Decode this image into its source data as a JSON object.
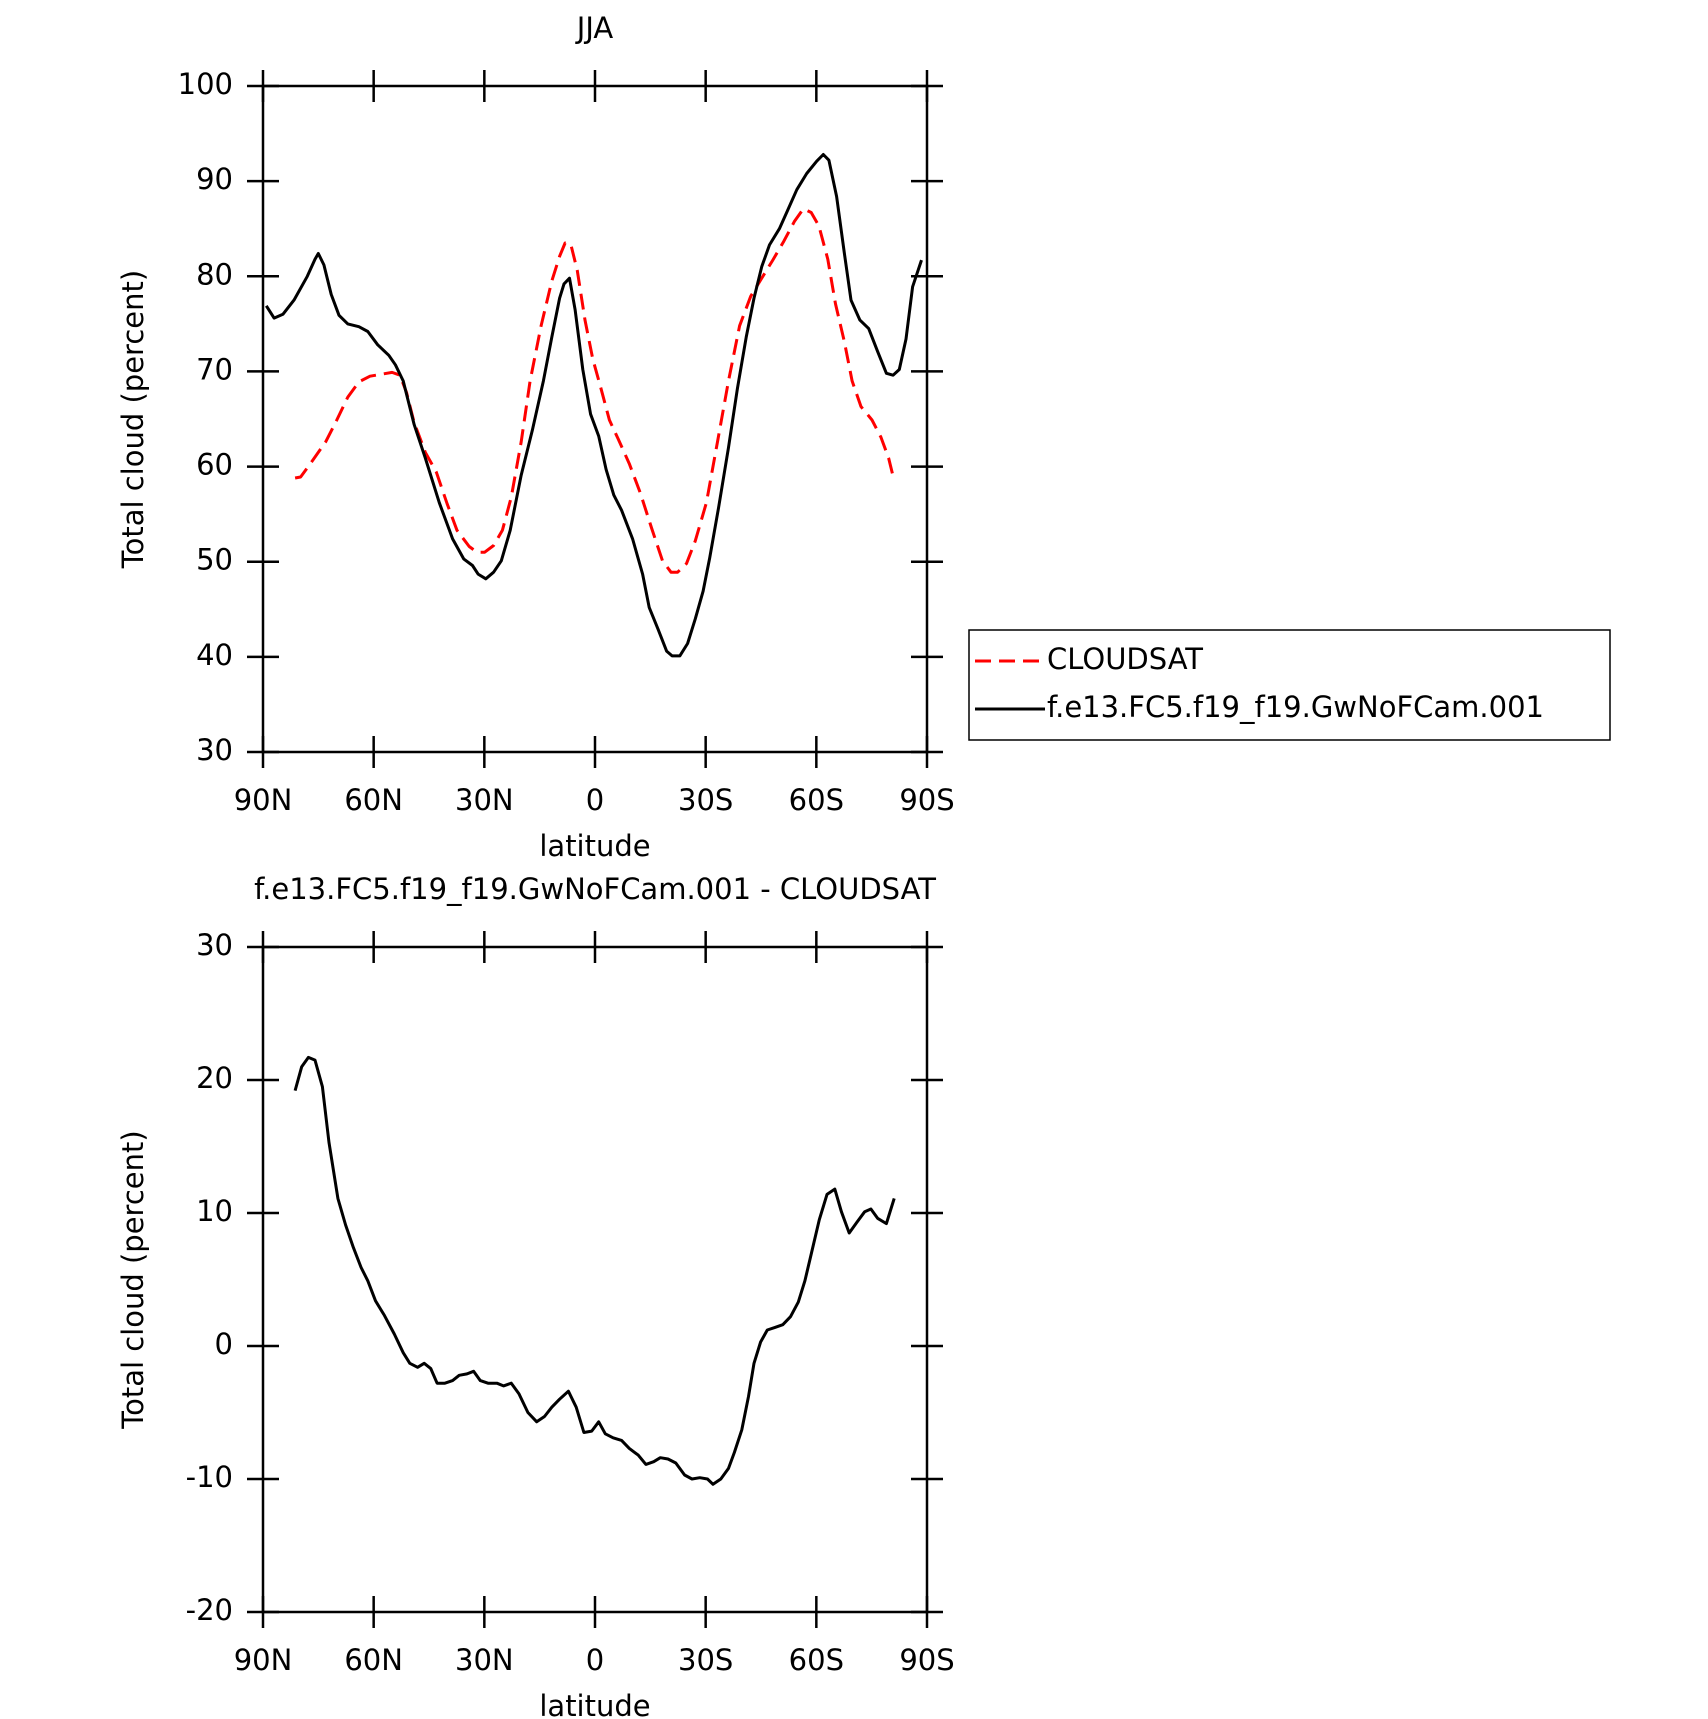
{
  "chart_data": [
    {
      "type": "line",
      "title": "JJA",
      "xlabel": "latitude",
      "ylabel": "Total cloud (percent)",
      "xlim": [
        90,
        -90
      ],
      "xticks": [
        {
          "value": 90,
          "label": "90N"
        },
        {
          "value": 60,
          "label": "60N"
        },
        {
          "value": 30,
          "label": "30N"
        },
        0,
        {
          "value": -30,
          "label": "30S"
        },
        {
          "value": -60,
          "label": "60S"
        },
        {
          "value": -90,
          "label": "90S"
        }
      ],
      "ylim": [
        30,
        100
      ],
      "yticks": [
        30,
        40,
        50,
        60,
        70,
        80,
        90,
        100
      ],
      "legend": "right",
      "series": [
        {
          "name": "CLOUDSAT",
          "color": "#ff0000",
          "style": "dashed",
          "x": [
            81.3,
            79.8,
            76.8,
            73,
            70,
            67,
            64,
            61,
            58,
            55,
            52.9,
            51.1,
            49,
            46,
            43,
            40.1,
            37.4,
            34.1,
            32,
            29.9,
            27.5,
            25.1,
            22.7,
            20,
            17.6,
            14.6,
            11.7,
            9.6,
            8.1,
            6.6,
            4.8,
            2.7,
            0.6,
            -1.5,
            -3.9,
            -6.3,
            -9.3,
            -12.3,
            -15.3,
            -18.3,
            -20.6,
            -22.4,
            -24.8,
            -27.2,
            -30.2,
            -33.2,
            -36.2,
            -39.2,
            -42.2,
            -45.2,
            -48.2,
            -51.2,
            -54.1,
            -56.5,
            -58.6,
            -60.7,
            -63.1,
            -65.2,
            -67.6,
            -69.7,
            -72.1,
            -75.1,
            -77.5,
            -79.6,
            -81.1
          ],
          "values": [
            58.8,
            58.9,
            60.5,
            62.6,
            64.9,
            67.3,
            68.9,
            69.5,
            69.7,
            69.9,
            69.6,
            67.8,
            64.6,
            61.5,
            59.4,
            56.1,
            53.3,
            51.6,
            51.0,
            51.0,
            51.7,
            53.3,
            56.8,
            62.6,
            69.0,
            74.8,
            79.5,
            82.1,
            83.5,
            83.4,
            80.6,
            75.4,
            71.3,
            68.4,
            64.9,
            62.9,
            60.3,
            57.2,
            53.6,
            50.1,
            48.9,
            48.9,
            49.8,
            52.2,
            56.2,
            62.6,
            69.0,
            74.8,
            77.9,
            79.8,
            81.7,
            83.7,
            85.8,
            87.1,
            86.7,
            85.3,
            81.8,
            77.1,
            73.1,
            69.0,
            66.3,
            64.9,
            63.1,
            60.9,
            58.5
          ]
        },
        {
          "name": "f.e13.FC5.f19_f19.GwNoFCam.001",
          "color": "#000000",
          "style": "solid",
          "x": [
            89.1,
            87,
            84.6,
            81.6,
            78,
            75.9,
            75,
            73.5,
            71.5,
            69.4,
            67,
            64,
            61.6,
            58.9,
            55.9,
            54.1,
            52,
            49,
            46,
            42.2,
            38.6,
            35.6,
            33.2,
            31.7,
            29.6,
            27.5,
            25.4,
            23,
            20,
            17,
            14,
            11.7,
            9.6,
            8.4,
            6.9,
            5.4,
            3.3,
            1.2,
            -1,
            -3,
            -5.1,
            -7.2,
            -10.2,
            -12.9,
            -14.7,
            -17.1,
            -19.4,
            -20.9,
            -23,
            -25.1,
            -27.2,
            -29.3,
            -31.1,
            -33.5,
            -36.2,
            -38.6,
            -41,
            -43.1,
            -45.2,
            -47.3,
            -50,
            -52.3,
            -54.7,
            -57.4,
            -60.1,
            -61.9,
            -63.4,
            -65.5,
            -67.6,
            -69.4,
            -71.8,
            -74.2,
            -76.6,
            -79,
            -80.8,
            -82.5,
            -84.3,
            -86.1,
            -88.5
          ],
          "values": [
            76.9,
            75.6,
            76.0,
            77.5,
            80.0,
            81.8,
            82.4,
            81.2,
            78.1,
            75.9,
            75.0,
            74.7,
            74.2,
            72.8,
            71.7,
            70.7,
            69.0,
            64.4,
            60.9,
            56.2,
            52.4,
            50.3,
            49.6,
            48.7,
            48.2,
            48.9,
            50.1,
            53.3,
            59.1,
            63.8,
            69.0,
            73.6,
            77.7,
            79.2,
            79.8,
            76.5,
            70.2,
            65.5,
            63.2,
            59.7,
            57.0,
            55.4,
            52.4,
            48.7,
            45.2,
            42.9,
            40.6,
            40.1,
            40.1,
            41.4,
            44.0,
            46.9,
            50.4,
            55.7,
            62.0,
            68.2,
            73.6,
            77.7,
            81.0,
            83.3,
            85.0,
            87.0,
            89.1,
            90.8,
            92.1,
            92.8,
            92.2,
            88.4,
            82.4,
            77.5,
            75.4,
            74.5,
            72.1,
            69.8,
            69.6,
            70.2,
            73.4,
            78.9,
            81.7
          ]
        }
      ]
    },
    {
      "type": "line",
      "title": "f.e13.FC5.f19_f19.GwNoFCam.001 - CLOUDSAT",
      "xlabel": "latitude",
      "ylabel": "Total cloud (percent)",
      "xlim": [
        90,
        -90
      ],
      "xticks": [
        {
          "value": 90,
          "label": "90N"
        },
        {
          "value": 60,
          "label": "60N"
        },
        {
          "value": 30,
          "label": "30N"
        },
        0,
        {
          "value": -30,
          "label": "30S"
        },
        {
          "value": -60,
          "label": "60S"
        },
        {
          "value": -90,
          "label": "90S"
        }
      ],
      "ylim": [
        -20,
        30
      ],
      "yticks": [
        -20,
        -10,
        0,
        10,
        20,
        30
      ],
      "series": [
        {
          "color": "#000000",
          "style": "solid",
          "x": [
            81.3,
            79.5,
            77.7,
            75.9,
            73.9,
            72.1,
            69.7,
            67.6,
            65.5,
            63.4,
            61.6,
            59.5,
            57.1,
            54.4,
            52,
            50.2,
            48.1,
            46.3,
            44.5,
            42.8,
            40.7,
            38.6,
            36.8,
            34.7,
            32.9,
            31.1,
            29,
            26.6,
            24.8,
            22.7,
            20.6,
            18.2,
            15.8,
            13.7,
            11.7,
            9.6,
            7.2,
            5.1,
            3,
            0.9,
            -1,
            -2.8,
            -4.9,
            -7.2,
            -9.3,
            -11.7,
            -13.8,
            -15.9,
            -17.7,
            -19.8,
            -21.9,
            -24.3,
            -26.3,
            -28.4,
            -30.5,
            -32,
            -34.1,
            -36.2,
            -37.8,
            -39.8,
            -41.6,
            -43.1,
            -44.9,
            -46.7,
            -48.8,
            -50.9,
            -53,
            -55.1,
            -56.9,
            -58.7,
            -60.8,
            -62.9,
            -65,
            -66.8,
            -68.9,
            -71,
            -73.1,
            -74.8,
            -76.6,
            -79,
            -81.1
          ],
          "values": [
            19.2,
            21.0,
            21.7,
            21.5,
            19.5,
            15.3,
            11.1,
            9.1,
            7.4,
            5.9,
            4.9,
            3.4,
            2.3,
            0.9,
            -0.5,
            -1.3,
            -1.6,
            -1.3,
            -1.7,
            -2.8,
            -2.8,
            -2.6,
            -2.2,
            -2.1,
            -1.9,
            -2.6,
            -2.8,
            -2.8,
            -3.0,
            -2.8,
            -3.6,
            -5.0,
            -5.7,
            -5.3,
            -4.6,
            -4.0,
            -3.4,
            -4.6,
            -6.5,
            -6.4,
            -5.7,
            -6.6,
            -6.9,
            -7.1,
            -7.7,
            -8.2,
            -8.9,
            -8.7,
            -8.4,
            -8.5,
            -8.8,
            -9.7,
            -10.0,
            -9.9,
            -10.0,
            -10.4,
            -10.0,
            -9.2,
            -8.0,
            -6.3,
            -3.8,
            -1.3,
            0.3,
            1.2,
            1.4,
            1.6,
            2.2,
            3.3,
            4.9,
            7.0,
            9.5,
            11.4,
            11.8,
            10.1,
            8.5,
            9.3,
            10.1,
            10.3,
            9.6,
            9.2,
            11.1
          ]
        }
      ]
    }
  ]
}
